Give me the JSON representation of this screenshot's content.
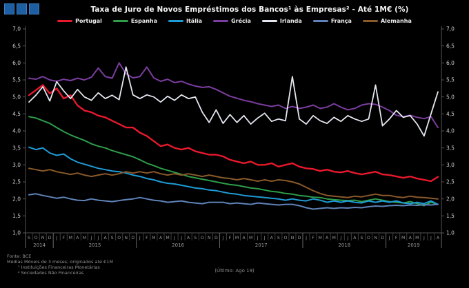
{
  "header": {
    "title": "Taxa de Juro de Novos Empréstimos dos Bancos¹ às Empresas² - Até 1M€ (%)"
  },
  "logo": {
    "icon": "three-blue-squares",
    "color": "#1d5fa2"
  },
  "footer": {
    "lines": [
      "Fonte: BCE",
      "Médias Móveis de 3 meses; originados até €1M",
      "¹ Instituições Financeiras Monetárias",
      "² Sociedades Não Financeiras"
    ],
    "last_observation": "(Último: Ago 19)"
  },
  "yaxis": {
    "min": 1.0,
    "max": 7.0,
    "step": 0.5,
    "tick_labels": [
      "7,0",
      "6,5",
      "6,0",
      "5,5",
      "5,0",
      "4,5",
      "4,0",
      "3,5",
      "3,0",
      "2,5",
      "2,0",
      "1,5",
      "1,0"
    ]
  },
  "xaxis": {
    "month_letter_cycle": [
      "J",
      "F",
      "M",
      "A",
      "M",
      "J",
      "J",
      "A",
      "S",
      "O",
      "N",
      "D"
    ],
    "start_month_index": 8,
    "years": [
      {
        "label": "2014",
        "months": 4
      },
      {
        "label": "2015",
        "months": 12
      },
      {
        "label": "2016",
        "months": 12
      },
      {
        "label": "2017",
        "months": 12
      },
      {
        "label": "2018",
        "months": 12
      },
      {
        "label": "2019",
        "months": 8
      }
    ]
  },
  "chart_data": {
    "type": "line",
    "title": "Taxa de Juro de Novos Empréstimos dos Bancos¹ às Empresas² - Até 1M€ (%)",
    "x_unit": "month",
    "x_start": "Set 2014",
    "x_end": "Ago 2019",
    "ylim": [
      1.0,
      7.0
    ],
    "grid": false,
    "legend_position": "top",
    "series": [
      {
        "id": "portugal",
        "name": "Portugal",
        "color": "#e8192c",
        "width": 2.4,
        "values": [
          5.05,
          5.2,
          5.35,
          5.1,
          5.25,
          4.95,
          5.05,
          4.75,
          4.6,
          4.55,
          4.45,
          4.4,
          4.3,
          4.2,
          4.1,
          4.1,
          3.95,
          3.85,
          3.7,
          3.55,
          3.6,
          3.5,
          3.45,
          3.5,
          3.4,
          3.35,
          3.3,
          3.3,
          3.25,
          3.15,
          3.1,
          3.05,
          3.1,
          3.0,
          3.0,
          3.05,
          2.95,
          3.0,
          3.05,
          2.95,
          2.9,
          2.88,
          2.82,
          2.86,
          2.8,
          2.78,
          2.82,
          2.76,
          2.72,
          2.76,
          2.8,
          2.72,
          2.7,
          2.66,
          2.62,
          2.66,
          2.6,
          2.56,
          2.52,
          2.65
        ]
      },
      {
        "id": "espanha",
        "name": "Espanha",
        "color": "#2e9e4a",
        "width": 2,
        "values": [
          4.42,
          4.38,
          4.3,
          4.22,
          4.1,
          3.98,
          3.88,
          3.8,
          3.72,
          3.62,
          3.55,
          3.5,
          3.42,
          3.36,
          3.3,
          3.24,
          3.15,
          3.05,
          2.98,
          2.9,
          2.84,
          2.78,
          2.72,
          2.66,
          2.62,
          2.58,
          2.54,
          2.5,
          2.46,
          2.42,
          2.4,
          2.36,
          2.32,
          2.3,
          2.26,
          2.22,
          2.2,
          2.16,
          2.14,
          2.1,
          2.08,
          2.05,
          2.04,
          2.0,
          1.98,
          1.96,
          1.95,
          1.96,
          1.92,
          1.96,
          2.0,
          1.96,
          1.92,
          1.9,
          1.88,
          1.92,
          1.86,
          1.8,
          1.9,
          1.84
        ]
      },
      {
        "id": "italia",
        "name": "Itália",
        "color": "#1e9cd7",
        "width": 2,
        "values": [
          3.52,
          3.45,
          3.5,
          3.35,
          3.28,
          3.32,
          3.18,
          3.08,
          3.02,
          2.96,
          2.9,
          2.86,
          2.82,
          2.8,
          2.76,
          2.7,
          2.66,
          2.6,
          2.56,
          2.5,
          2.46,
          2.44,
          2.4,
          2.36,
          2.32,
          2.3,
          2.26,
          2.24,
          2.2,
          2.16,
          2.14,
          2.1,
          2.08,
          2.06,
          2.04,
          2.02,
          2.0,
          1.96,
          2.0,
          1.96,
          1.94,
          2.0,
          1.96,
          1.9,
          1.94,
          1.9,
          1.94,
          1.9,
          1.88,
          1.94,
          1.9,
          1.94,
          1.9,
          1.94,
          1.88,
          1.86,
          1.9,
          1.86,
          1.94,
          1.84
        ]
      },
      {
        "id": "grecia",
        "name": "Grécia",
        "color": "#7c3da0",
        "width": 2,
        "values": [
          5.55,
          5.52,
          5.6,
          5.5,
          5.46,
          5.52,
          5.48,
          5.55,
          5.5,
          5.58,
          5.85,
          5.6,
          5.55,
          6.0,
          5.68,
          5.56,
          5.6,
          5.88,
          5.56,
          5.46,
          5.52,
          5.42,
          5.46,
          5.38,
          5.32,
          5.28,
          5.3,
          5.22,
          5.12,
          5.02,
          4.96,
          4.9,
          4.86,
          4.8,
          4.76,
          4.72,
          4.76,
          4.66,
          4.72,
          4.66,
          4.7,
          4.76,
          4.66,
          4.7,
          4.8,
          4.7,
          4.62,
          4.66,
          4.76,
          4.8,
          4.78,
          4.7,
          4.6,
          4.46,
          4.42,
          4.46,
          4.4,
          4.36,
          4.42,
          4.1
        ]
      },
      {
        "id": "irlanda",
        "name": "Irlanda",
        "color": "#e4e7f0",
        "width": 1.8,
        "values": [
          4.85,
          5.05,
          5.3,
          4.88,
          5.45,
          5.18,
          4.95,
          5.22,
          5.0,
          4.9,
          5.12,
          4.95,
          5.05,
          4.92,
          5.88,
          5.06,
          4.95,
          5.06,
          5.0,
          4.85,
          5.02,
          4.9,
          5.06,
          4.95,
          5.0,
          4.55,
          4.25,
          4.62,
          4.22,
          4.48,
          4.25,
          4.45,
          4.2,
          4.38,
          4.52,
          4.28,
          4.35,
          4.3,
          5.6,
          4.35,
          4.2,
          4.45,
          4.3,
          4.22,
          4.4,
          4.28,
          4.45,
          4.35,
          4.28,
          4.35,
          5.35,
          4.15,
          4.35,
          4.6,
          4.4,
          4.45,
          4.2,
          3.85,
          4.5,
          5.15
        ]
      },
      {
        "id": "franca",
        "name": "França",
        "color": "#5f83b9",
        "width": 2,
        "values": [
          2.12,
          2.15,
          2.1,
          2.06,
          2.02,
          2.05,
          2.0,
          1.96,
          1.95,
          2.0,
          1.96,
          1.94,
          1.92,
          1.95,
          1.98,
          2.0,
          2.04,
          2.0,
          1.96,
          1.94,
          1.9,
          1.92,
          1.94,
          1.9,
          1.88,
          1.86,
          1.9,
          1.9,
          1.9,
          1.86,
          1.88,
          1.86,
          1.84,
          1.88,
          1.86,
          1.84,
          1.82,
          1.84,
          1.84,
          1.8,
          1.74,
          1.7,
          1.72,
          1.74,
          1.72,
          1.74,
          1.73,
          1.75,
          1.74,
          1.77,
          1.79,
          1.78,
          1.8,
          1.81,
          1.8,
          1.82,
          1.81,
          1.83,
          1.82,
          1.84
        ]
      },
      {
        "id": "alemanha",
        "name": "Alemanha",
        "color": "#8a5a2a",
        "width": 2,
        "values": [
          2.9,
          2.86,
          2.82,
          2.86,
          2.8,
          2.76,
          2.72,
          2.76,
          2.7,
          2.66,
          2.7,
          2.74,
          2.7,
          2.74,
          2.8,
          2.76,
          2.8,
          2.76,
          2.8,
          2.74,
          2.7,
          2.74,
          2.7,
          2.74,
          2.7,
          2.66,
          2.7,
          2.66,
          2.62,
          2.6,
          2.56,
          2.6,
          2.56,
          2.52,
          2.56,
          2.52,
          2.56,
          2.54,
          2.5,
          2.44,
          2.34,
          2.24,
          2.16,
          2.1,
          2.08,
          2.06,
          2.04,
          2.08,
          2.06,
          2.1,
          2.14,
          2.1,
          2.1,
          2.06,
          2.04,
          2.08,
          2.05,
          2.04,
          2.02,
          2.0
        ]
      }
    ]
  }
}
